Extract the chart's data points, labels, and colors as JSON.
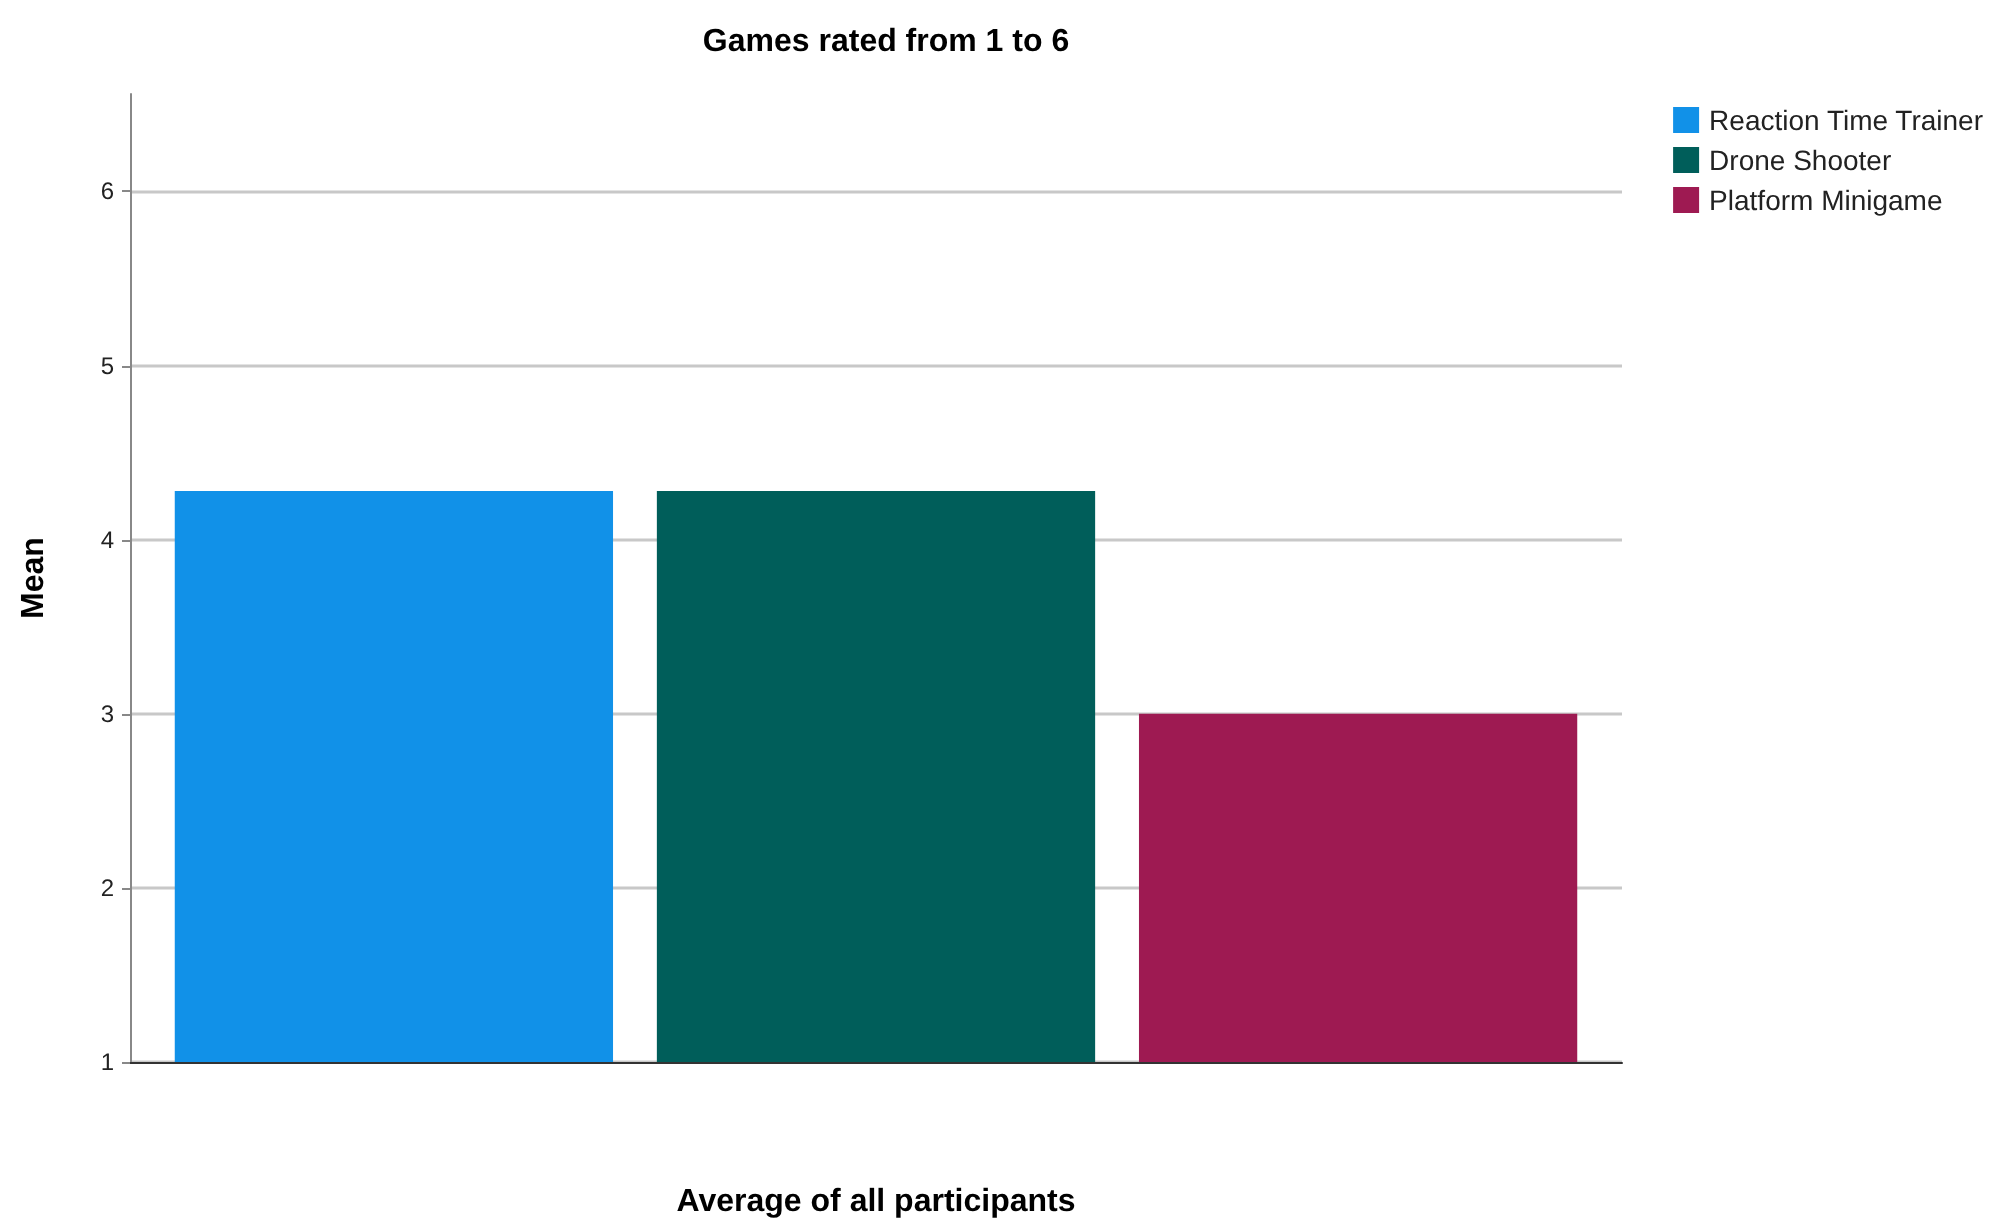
{
  "chart_data": {
    "type": "bar",
    "title": "Games rated from 1 to 6",
    "xlabel": "Average of all participants",
    "ylabel": "Mean",
    "categories": [
      null
    ],
    "series": [
      {
        "name": "Reaction Time Trainer",
        "color": "#1191e8",
        "values": [
          4.28
        ]
      },
      {
        "name": "Drone Shooter",
        "color": "#005e5a",
        "values": [
          4.28
        ]
      },
      {
        "name": "Platform Minigame",
        "color": "#9e1a52",
        "values": [
          3.0
        ]
      }
    ],
    "ylim": [
      1,
      6.56
    ],
    "yticks": [
      1,
      2,
      3,
      4,
      5,
      6
    ],
    "grid": "y",
    "legend": "top right"
  }
}
